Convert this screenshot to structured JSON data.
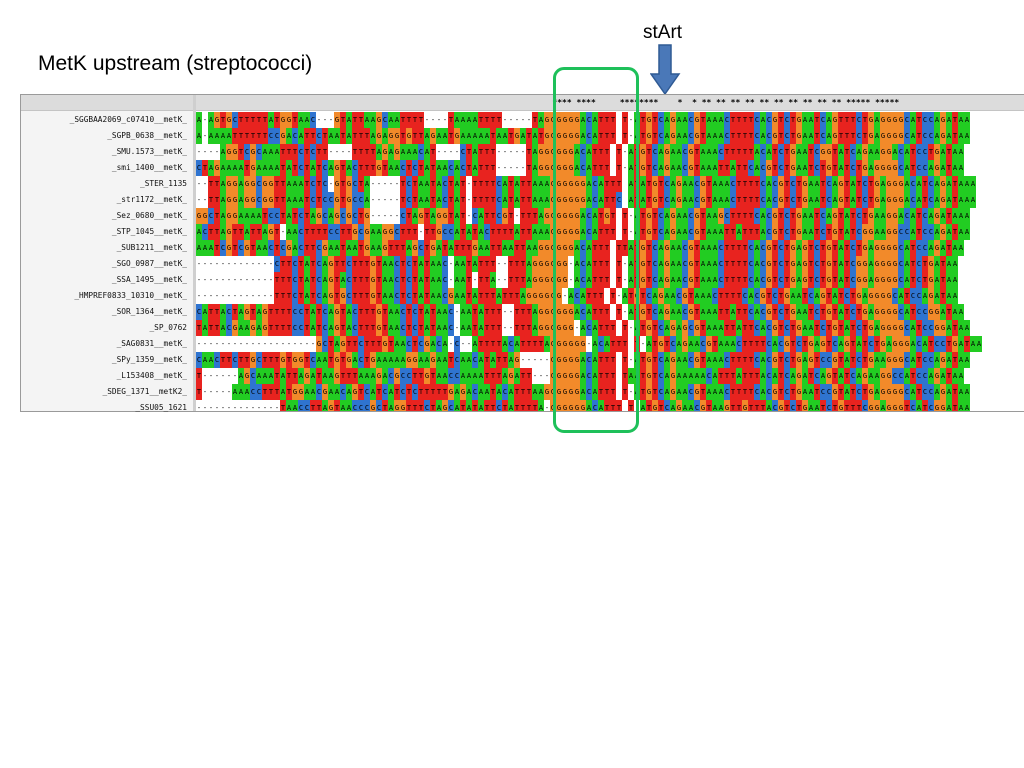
{
  "title": "MetK upstream (streptococci)",
  "start_label": "stArt",
  "colors": {
    "A": "#22cc22",
    "C": "#2f74d0",
    "G": "#f28a2a",
    "T": "#e8231f",
    "-": "#ffffff",
    "box": "#1ec05a",
    "arrow": "#4a78b8"
  },
  "conservation": "                                                                          **** ****     ********    *  * ** ** ** ** ** ** ** ** ** ** ***** *****",
  "sequences": [
    {
      "name": "_SGGBAA2069_c07410__metK_",
      "seq": "A-AGTGCTTTTTATGGTAAC---GTATTAAGCAATTTT----TAAAATTTT-----TAGGGGGGACATTT T-ATGTCAGAACGTAAACTTTTCACGTCTGAATCAGTTTCTGAGGGGCATCCAGATAA"
    },
    {
      "name": "_SGPB_0638__metK_",
      "seq": "A-AAAATTTTTTCCGACATTCTAATATTTAGAGGTGTTAGAATGAAAAATAATGATATGGGGGGACATTT T-ATGTCAGAACGTAAACTTTTCACGTCTGAATCAGTTTCTGAGGGGCATCCAGATAA"
    },
    {
      "name": "_SMU.1573__metK_",
      "seq": "----AGGTCGCAAATTTCTCTT----TTTTAGAGAAACAT----CTATTT-----TAGGGGGGACATTT T-ATGTCAGAACGTAAACTTTTTACATCTGAATCGGTATCAGAAGGACATCCTGATAA"
    },
    {
      "name": "_smi_1400__metK_",
      "seq": "CTAGAAAATGAAAATATCTATCAGTACTTTGTAACTCTATAACACTATTT-----TAGGGGGGACATTT T-ATGTCAGAACGTAAATTATTCACGTCTGAATCTGTATCTGAGGGGCATCCAGATAA"
    },
    {
      "name": "_STER_1135",
      "seq": "--TTAGGAGGCGGTTAAATCTC-GTGCTA-----TCTAATACTAT-TTTTCATATTAAAGGGGGGACATTT ATATGTCAGAACGTAAACTTTTCACGTCTGAATCAGTATCTGAGGGACATCAGATAAA"
    },
    {
      "name": "_str1172__metK_",
      "seq": "--TTAGGAGGCGGTTAAATCTCCGTGCCA-----TCTAATACTAT-TTTTCATATTAAAGGGGGGACATTC ATATGTCAGAACGTAAACTTTTCACGTCTGAATCAGTATCTGAGGGACATCAGATAAA"
    },
    {
      "name": "_Sez_0680__metK_",
      "seq": "GGCTAGGAAAATCCTATCTAGCAGCGCTG-----CTAGTAGGTAT-CATTCGT-TTTAGGGGGGACATGT T-ATGTCAGAACGTAAGCTTTTCACGTCTGAATCAGTATCTGAAGGACATCAGATAAA"
    },
    {
      "name": "_STP_1045__metK_",
      "seq": "ACTTAGTTATTAGT-AACTTTTCCTTGCGAAGGCTTT-TTGCCATATACTTTTATTAAAGGGGGACATTT T-ATGTCAGAACGTAAATTATTTACGTCTGAATCTGTATCGGAAGGCCATCCAGATAA"
    },
    {
      "name": "_SUB1211__metK_",
      "seq": "AAATCGTCGTAACTCGACTTCGAATAATGAAGTTTAGCTGATATTTGAATTAATTAAGGGGGGACATTT TTATGTCAGAACGTAAACTTTTCACGTCTGAGTCTGTATCTGAGGGGCATCCAGATAA"
    },
    {
      "name": "_SGO_0987__metK_",
      "seq": "-------------CTTCTATCAGTTCTTTGTAACTCTATAAC-AATATTT--TTTAGGGGGG-ACATTT T-ATGTCAGAACGTAAACTTTTCACGTCTGAGTCTGTATCGGAGGGGCATCTGATAA"
    },
    {
      "name": "_SSA_1495__metK_",
      "seq": "-------------TTTCTATCAGTACTTTGTAACTCTATAAC-AAT-TTA--TTTAGGGGGG-ACATTT T-ATGTCAGAACGTAAACTTTTCACGTCTGAGTCTGTATCGGAGGGGCATCTGATAA"
    },
    {
      "name": "_HMPREF0833_10310__metK_",
      "seq": "-------------TTTCTATCAGTGCTTTGTAACTCTATAACGAATATTTATTTAGGGGGG-ACATTT T-ATGTCAGAACGTAAACTTTTCACGTCTGAATCAGTATCTGAGGGGCATCCAGATAA"
    },
    {
      "name": "_SOR_1364__metK_",
      "seq": "CATTACTAGTAGTTTTCCTATCAGTACTTTGTAACTCTATAAC-AATATTT--TTTAGGGGGGACATTT T-ATGTCAGAACGTAAATTATTCACGTCTGAATCTGTATCTGAGGGGCATCCGGATAA"
    },
    {
      "name": "_SP_0762",
      "seq": "TATTACGAAGAGTTTTCCTATCAGTACTTTGTAACTCTATAAC-AATATTT--TTTAGGGGGG-ACATTT T-ATGTCAGAGCGTAAATTATTCACGTCTGAATCTGTATCTGAGGGGCATCCGGATAA"
    },
    {
      "name": "_SAG0831__metK_",
      "seq": "--------------------GCTAGTTCTTTGTAACTCGACA-C--ATTTTACATTTTAGGGGGG-ACATTT T-ATGTCAGAACGTAAACTTTTCACGTCTGAGTCAGTATCTGAGGGACATCCTGATAA"
    },
    {
      "name": "_SPy_1359__metK_",
      "seq": "CAACTTCTTGCTTTGTGGTCAATGTGACTGAAAAAGGAAGAATCAACATATTAG-----GGGGGACATTT T-ATGTCAGAACGTAAACTTTTCACGTCTGAGTCCGTATCTGAAGGGCATCCAGATAA"
    },
    {
      "name": "_L153408__metK_",
      "seq": "T------AGCAAATATTAGATAAGTTTAAAGACGCCTTGTAACCAAAATTTAGATT---GGGGGACATTT TAATGTCAGAAAAACATTTATTTACATCAGATCAGTATCAGAAGGCCATCCAGATAA"
    },
    {
      "name": "_SDEG_1371__metK2_",
      "seq": "T-----AAACCTTTATGGAACGAACAGTCATCATCTCTTTTTGAGACAATACATTTAAGGGGGGACATTT T-ATGTCAGAACGTAAACTTTTCACGTCTGAATCCGTATCTGAGGGGCATCCAGATAA"
    },
    {
      "name": "_SSU05_1621",
      "seq": "--------------TAACCTTAGTAACCCGCTAGGTTTCTAGCATATATTCTATTTTA-GGGGGGACATTT T-ATGTCAGAACGTAAGTTGTTTACGTCTGAATCTGTTTCGGAGGGTCATCGGATAA"
    }
  ]
}
